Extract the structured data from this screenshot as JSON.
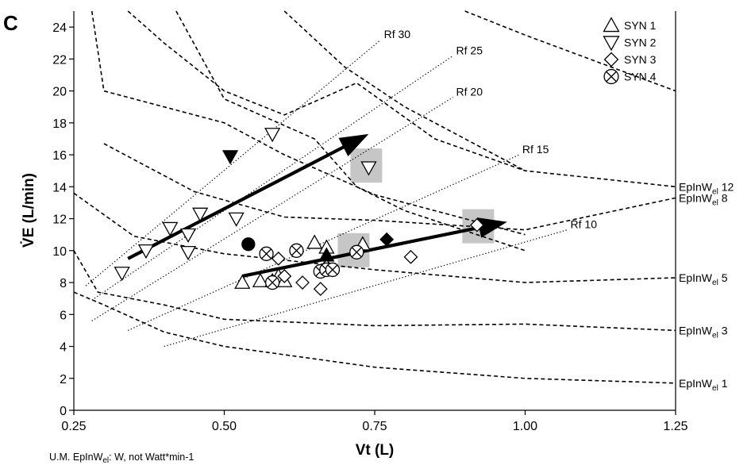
{
  "chart_data": {
    "type": "scatter",
    "panel_label": "C",
    "xlabel": "Vt (L)",
    "ylabel": "V̇E (L/min)",
    "xlim": [
      0.25,
      1.25
    ],
    "ylim": [
      0,
      25
    ],
    "xticks": [
      "0.25",
      "0.50",
      "0.75",
      "1.00",
      "1.25"
    ],
    "yticks": [
      "0",
      "2",
      "4",
      "6",
      "8",
      "10",
      "12",
      "14",
      "16",
      "18",
      "20",
      "22",
      "24"
    ],
    "grid": false,
    "legend_position": "top-right",
    "legend": [
      {
        "label": "SYN 1",
        "marker": "triangle-up"
      },
      {
        "label": "SYN 2",
        "marker": "triangle-down"
      },
      {
        "label": "SYN 3",
        "marker": "diamond"
      },
      {
        "label": "SYN 4",
        "marker": "circle-x"
      }
    ],
    "iso_work_curves": [
      {
        "prefix": "EpInW",
        "sub": "el",
        "suffix": " 1",
        "points": [
          [
            0.25,
            7.4
          ],
          [
            0.3,
            6.6
          ],
          [
            0.4,
            4.9
          ],
          [
            0.5,
            4.0
          ],
          [
            0.75,
            2.7
          ],
          [
            1.0,
            2.0
          ],
          [
            1.25,
            1.7
          ]
        ]
      },
      {
        "prefix": "EpInW",
        "sub": "el",
        "suffix": " 3",
        "points": [
          [
            0.25,
            10.0
          ],
          [
            0.29,
            7.4
          ],
          [
            0.4,
            6.6
          ],
          [
            0.5,
            5.7
          ],
          [
            0.75,
            5.3
          ],
          [
            1.0,
            5.4
          ],
          [
            1.25,
            5.0
          ]
        ]
      },
      {
        "prefix": "EpInW",
        "sub": "el",
        "suffix": " 5",
        "points": [
          [
            0.25,
            13.6
          ],
          [
            0.35,
            10.9
          ],
          [
            0.5,
            9.8
          ],
          [
            0.75,
            8.8
          ],
          [
            1.0,
            8.0
          ],
          [
            1.25,
            8.3
          ]
        ]
      },
      {
        "prefix": "EpInW",
        "sub": "el",
        "suffix": " 8",
        "points": [
          [
            0.3,
            16.7
          ],
          [
            0.45,
            13.7
          ],
          [
            0.6,
            12.1
          ],
          [
            0.75,
            11.9
          ],
          [
            1.0,
            11.3
          ],
          [
            1.25,
            13.3
          ]
        ]
      },
      {
        "prefix": "EpInW",
        "sub": "el",
        "suffix": " 12",
        "points": [
          [
            0.34,
            25.0
          ],
          [
            0.4,
            23.0
          ],
          [
            0.5,
            20.0
          ],
          [
            0.6,
            18.5
          ],
          [
            0.72,
            20.5
          ],
          [
            0.85,
            17.0
          ],
          [
            1.0,
            15.0
          ],
          [
            1.25,
            14.0
          ]
        ]
      },
      {
        "prefix": "",
        "sub": "",
        "suffix": "",
        "points": [
          [
            0.28,
            25.0
          ],
          [
            0.3,
            20.0
          ],
          [
            0.5,
            18.0
          ],
          [
            0.6,
            16.0
          ],
          [
            0.75,
            13.5
          ],
          [
            1.0,
            11.0
          ]
        ]
      },
      {
        "prefix": "",
        "sub": "",
        "suffix": "",
        "points": [
          [
            0.42,
            25.0
          ],
          [
            0.5,
            19.5
          ],
          [
            0.65,
            17.0
          ],
          [
            0.72,
            14.0
          ],
          [
            0.8,
            12.5
          ],
          [
            1.0,
            10.0
          ]
        ]
      },
      {
        "prefix": "",
        "sub": "",
        "suffix": "",
        "points": [
          [
            0.6,
            25.0
          ],
          [
            0.7,
            21.5
          ],
          [
            0.8,
            19.0
          ],
          [
            1.0,
            15.0
          ]
        ]
      },
      {
        "prefix": "",
        "sub": "",
        "suffix": "",
        "points": [
          [
            0.9,
            25.0
          ],
          [
            1.0,
            23.5
          ],
          [
            1.25,
            20.0
          ]
        ]
      }
    ],
    "rf_lines": [
      {
        "label": "Rf 30",
        "start": [
          0.27,
          7.8
        ],
        "end": [
          0.76,
          23.2
        ]
      },
      {
        "label": "Rf 25",
        "start": [
          0.28,
          6.9
        ],
        "end": [
          0.88,
          22.2
        ]
      },
      {
        "label": "Rf 20",
        "start": [
          0.28,
          5.6
        ],
        "end": [
          0.88,
          19.6
        ]
      },
      {
        "label": "Rf 15",
        "start": [
          0.34,
          5.0
        ],
        "end": [
          0.99,
          16.0
        ]
      },
      {
        "label": "Rf 10",
        "start": [
          0.4,
          4.0
        ],
        "end": [
          1.07,
          11.3
        ]
      }
    ],
    "series": [
      {
        "name": "SYN 1",
        "marker": "triangle-up",
        "filled": false,
        "points": [
          [
            0.53,
            8.0
          ],
          [
            0.56,
            8.1
          ],
          [
            0.58,
            8.1
          ],
          [
            0.59,
            8.4
          ],
          [
            0.6,
            8.1
          ],
          [
            0.65,
            10.5
          ],
          [
            0.67,
            10.2
          ],
          [
            0.73,
            10.4
          ]
        ]
      },
      {
        "name": "SYN 1",
        "marker": "triangle-up",
        "filled": true,
        "points": [
          [
            0.67,
            9.7
          ]
        ]
      },
      {
        "name": "SYN 2",
        "marker": "triangle-down",
        "filled": false,
        "points": [
          [
            0.33,
            8.6
          ],
          [
            0.37,
            10.0
          ],
          [
            0.41,
            11.4
          ],
          [
            0.44,
            11.0
          ],
          [
            0.44,
            9.9
          ],
          [
            0.46,
            12.3
          ],
          [
            0.52,
            12.0
          ],
          [
            0.58,
            17.3
          ],
          [
            0.74,
            15.2
          ]
        ]
      },
      {
        "name": "SYN 2",
        "marker": "triangle-down",
        "filled": true,
        "points": [
          [
            0.51,
            15.9
          ]
        ]
      },
      {
        "name": "SYN 3",
        "marker": "diamond",
        "filled": false,
        "points": [
          [
            0.58,
            8.1
          ],
          [
            0.59,
            9.5
          ],
          [
            0.6,
            8.4
          ],
          [
            0.63,
            8.0
          ],
          [
            0.66,
            7.6
          ],
          [
            0.67,
            9.0
          ],
          [
            0.81,
            9.6
          ],
          [
            0.92,
            11.6
          ]
        ]
      },
      {
        "name": "SYN 3",
        "marker": "diamond",
        "filled": true,
        "points": [
          [
            0.77,
            10.7
          ]
        ]
      },
      {
        "name": "SYN 4",
        "marker": "circle-x",
        "filled": false,
        "points": [
          [
            0.57,
            9.8
          ],
          [
            0.58,
            8.0
          ],
          [
            0.62,
            10.0
          ],
          [
            0.66,
            8.7
          ],
          [
            0.67,
            8.8
          ],
          [
            0.68,
            8.8
          ],
          [
            0.72,
            9.9
          ]
        ]
      },
      {
        "name": "SYN 4",
        "marker": "circle",
        "filled": true,
        "points": [
          [
            0.54,
            10.4
          ]
        ]
      }
    ],
    "trend_arrows": [
      {
        "start": [
          0.34,
          9.5
        ],
        "end": [
          0.74,
          17.3
        ]
      },
      {
        "start": [
          0.53,
          8.4
        ],
        "end": [
          0.97,
          11.8
        ]
      }
    ],
    "highlight_boxes": [
      {
        "center": [
          0.736,
          15.3
        ]
      },
      {
        "center": [
          0.715,
          10.0
        ]
      },
      {
        "center": [
          0.922,
          11.5
        ]
      }
    ]
  },
  "footnote": {
    "prefix": "U.M. EpInW",
    "sub": "el",
    "suffix": ": W, not Watt*min-1"
  }
}
